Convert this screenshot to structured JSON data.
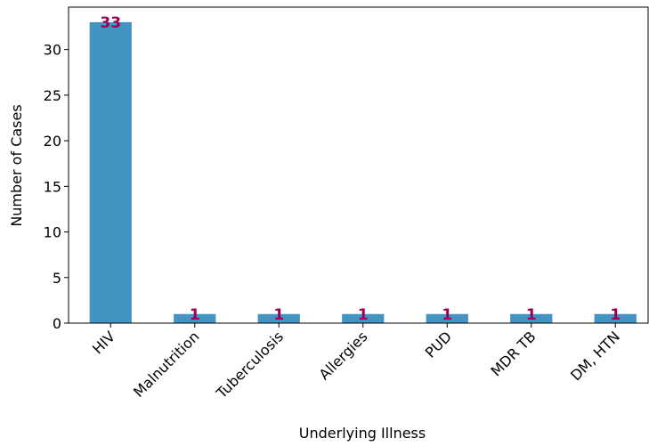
{
  "chart_data": {
    "type": "bar",
    "xlabel": "Underlying Illness",
    "ylabel": "Number of Cases",
    "categories": [
      "HIV",
      "Malnutrition",
      "Tuberculosis",
      "Allergies",
      "PUD",
      "MDR TB",
      "DM, HTN"
    ],
    "values": [
      33,
      1,
      1,
      1,
      1,
      1,
      1
    ],
    "color": "#4393c3",
    "ylim": [
      0,
      34.65
    ],
    "yticks": [
      0,
      5,
      10,
      15,
      20,
      25,
      30
    ]
  }
}
